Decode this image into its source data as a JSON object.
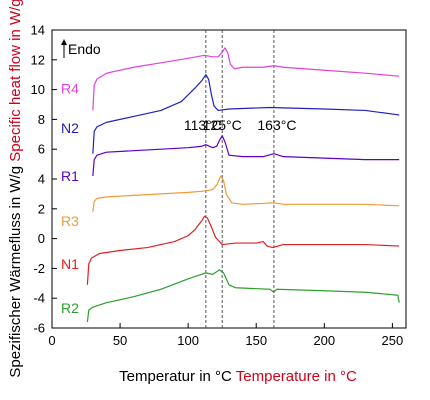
{
  "chart_data": {
    "type": "line",
    "xlabel": {
      "de": "Temperatur in °C",
      "en": "Temperature in °C"
    },
    "ylabel": {
      "de": "Spezifischer Wärmefluss in W/g",
      "en": "Specific heat flow in W/g"
    },
    "xlim": [
      0,
      260
    ],
    "ylim": [
      -6,
      14
    ],
    "xticks": [
      0,
      50,
      100,
      150,
      200,
      250
    ],
    "yticks": [
      -6,
      -4,
      -2,
      0,
      2,
      4,
      6,
      8,
      10,
      12,
      14
    ],
    "grid": false,
    "endo_label": "Endo",
    "reference_lines": [
      {
        "x": 113,
        "label": "113°C"
      },
      {
        "x": 125,
        "label": "125°C"
      },
      {
        "x": 163,
        "label": "163°C"
      }
    ],
    "series": [
      {
        "name": "R4",
        "color": "#e040e0",
        "points": [
          [
            30,
            8.6
          ],
          [
            31,
            10.3
          ],
          [
            33,
            10.7
          ],
          [
            40,
            11.1
          ],
          [
            60,
            11.5
          ],
          [
            80,
            11.8
          ],
          [
            100,
            12.1
          ],
          [
            112,
            12.3
          ],
          [
            118,
            12.2
          ],
          [
            122,
            12.2
          ],
          [
            125,
            12.5
          ],
          [
            127,
            12.8
          ],
          [
            129,
            12.5
          ],
          [
            131,
            11.7
          ],
          [
            134,
            11.4
          ],
          [
            140,
            11.5
          ],
          [
            155,
            11.5
          ],
          [
            163,
            11.6
          ],
          [
            170,
            11.5
          ],
          [
            200,
            11.3
          ],
          [
            230,
            11.1
          ],
          [
            255,
            10.9
          ]
        ]
      },
      {
        "name": "N2",
        "color": "#2020c0",
        "points": [
          [
            30,
            5.7
          ],
          [
            31,
            7.2
          ],
          [
            33,
            7.5
          ],
          [
            40,
            7.8
          ],
          [
            60,
            8.2
          ],
          [
            80,
            8.6
          ],
          [
            95,
            9.2
          ],
          [
            105,
            10.1
          ],
          [
            110,
            10.6
          ],
          [
            113,
            11.0
          ],
          [
            115,
            10.7
          ],
          [
            117,
            9.7
          ],
          [
            119,
            8.9
          ],
          [
            122,
            8.6
          ],
          [
            130,
            8.7
          ],
          [
            160,
            8.8
          ],
          [
            200,
            8.7
          ],
          [
            230,
            8.6
          ],
          [
            255,
            8.3
          ]
        ]
      },
      {
        "name": "R1",
        "color": "#5a00c8",
        "points": [
          [
            30,
            4.2
          ],
          [
            31,
            5.3
          ],
          [
            33,
            5.6
          ],
          [
            40,
            5.8
          ],
          [
            60,
            5.9
          ],
          [
            80,
            6.0
          ],
          [
            100,
            6.1
          ],
          [
            110,
            6.2
          ],
          [
            113,
            6.3
          ],
          [
            118,
            6.1
          ],
          [
            121,
            6.2
          ],
          [
            123,
            6.6
          ],
          [
            125,
            6.9
          ],
          [
            127,
            6.5
          ],
          [
            130,
            5.6
          ],
          [
            140,
            5.5
          ],
          [
            155,
            5.5
          ],
          [
            163,
            5.7
          ],
          [
            170,
            5.5
          ],
          [
            200,
            5.4
          ],
          [
            230,
            5.3
          ],
          [
            255,
            5.3
          ]
        ]
      },
      {
        "name": "R3",
        "color": "#f39a37",
        "points": [
          [
            30,
            1.8
          ],
          [
            31,
            2.5
          ],
          [
            33,
            2.7
          ],
          [
            40,
            2.8
          ],
          [
            60,
            2.9
          ],
          [
            80,
            3.0
          ],
          [
            100,
            3.1
          ],
          [
            113,
            3.2
          ],
          [
            118,
            3.3
          ],
          [
            121,
            3.6
          ],
          [
            124,
            4.2
          ],
          [
            126,
            3.9
          ],
          [
            128,
            3.0
          ],
          [
            132,
            2.4
          ],
          [
            140,
            2.3
          ],
          [
            163,
            2.4
          ],
          [
            170,
            2.3
          ],
          [
            200,
            2.3
          ],
          [
            230,
            2.3
          ],
          [
            255,
            2.2
          ]
        ]
      },
      {
        "name": "N1",
        "color": "#e02020",
        "points": [
          [
            26,
            -3.1
          ],
          [
            27,
            -1.7
          ],
          [
            29,
            -1.3
          ],
          [
            35,
            -1.0
          ],
          [
            50,
            -0.8
          ],
          [
            70,
            -0.6
          ],
          [
            90,
            -0.2
          ],
          [
            100,
            0.2
          ],
          [
            105,
            0.6
          ],
          [
            110,
            1.2
          ],
          [
            112,
            1.5
          ],
          [
            114,
            1.4
          ],
          [
            117,
            0.8
          ],
          [
            120,
            0.1
          ],
          [
            125,
            -0.4
          ],
          [
            135,
            -0.3
          ],
          [
            150,
            -0.3
          ],
          [
            155,
            -0.2
          ],
          [
            158,
            -0.5
          ],
          [
            162,
            -0.6
          ],
          [
            170,
            -0.4
          ],
          [
            200,
            -0.4
          ],
          [
            230,
            -0.4
          ],
          [
            255,
            -0.5
          ]
        ]
      },
      {
        "name": "R2",
        "color": "#2ca02c",
        "points": [
          [
            26,
            -5.6
          ],
          [
            27,
            -4.8
          ],
          [
            30,
            -4.6
          ],
          [
            40,
            -4.3
          ],
          [
            60,
            -3.9
          ],
          [
            80,
            -3.4
          ],
          [
            100,
            -2.7
          ],
          [
            110,
            -2.4
          ],
          [
            113,
            -2.3
          ],
          [
            118,
            -2.4
          ],
          [
            123,
            -2.1
          ],
          [
            126,
            -2.3
          ],
          [
            130,
            -3.1
          ],
          [
            135,
            -3.3
          ],
          [
            160,
            -3.4
          ],
          [
            163,
            -3.6
          ],
          [
            165,
            -3.4
          ],
          [
            200,
            -3.5
          ],
          [
            230,
            -3.6
          ],
          [
            254,
            -3.8
          ],
          [
            255,
            -4.3
          ]
        ]
      }
    ]
  }
}
